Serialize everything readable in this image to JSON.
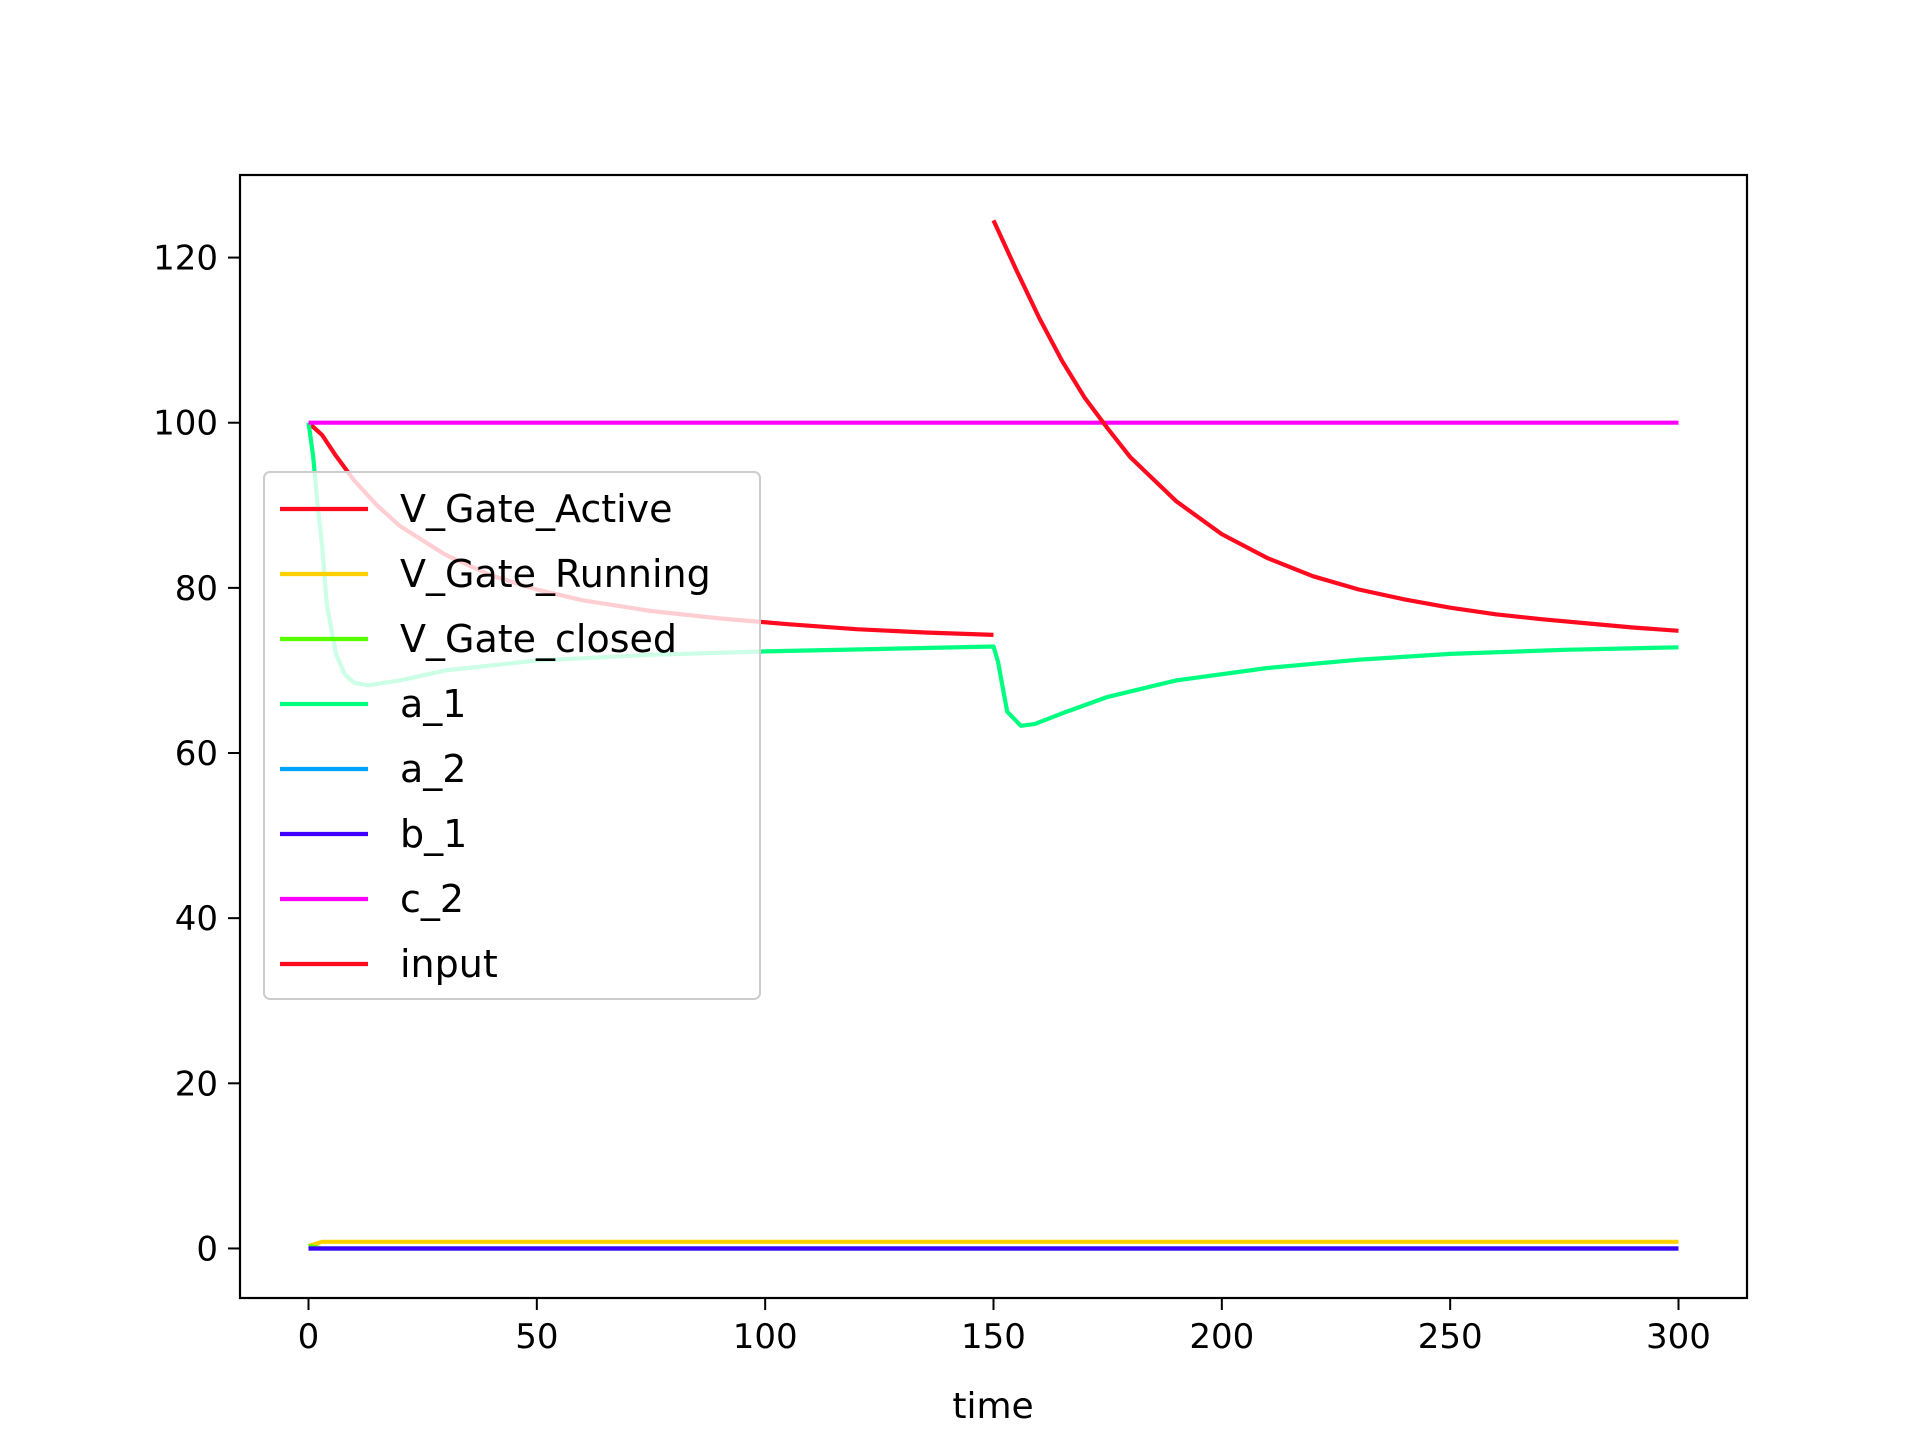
{
  "chart_data": {
    "type": "line",
    "title": "",
    "xlabel": "time",
    "ylabel": "",
    "xlim": [
      -15,
      315
    ],
    "ylim": [
      -6,
      130
    ],
    "xticks": [
      0,
      50,
      100,
      150,
      200,
      250,
      300
    ],
    "yticks": [
      0,
      20,
      40,
      60,
      80,
      100,
      120
    ],
    "grid": false,
    "legend_placement": "center-left",
    "legend": [
      "V_Gate_Active",
      "V_Gate_Running",
      "V_Gate_closed",
      "a_1",
      "a_2",
      "b_1",
      "c_2",
      "input"
    ],
    "series": [
      {
        "name": "V_Gate_Active",
        "color": "#ff0a1e",
        "x": [
          0,
          3,
          6,
          10,
          15,
          20,
          30,
          40,
          50,
          60,
          75,
          90,
          105,
          120,
          135,
          150
        ],
        "y": [
          100,
          98.5,
          96,
          93,
          90,
          87.5,
          84,
          81.5,
          79.8,
          78.5,
          77.2,
          76.3,
          75.6,
          75.0,
          74.6,
          74.3
        ]
      },
      {
        "name": "V_Gate_Running",
        "color": "#ffd000",
        "x": [
          0,
          3,
          150,
          300
        ],
        "y": [
          0.3,
          0.8,
          0.8,
          0.8
        ]
      },
      {
        "name": "V_Gate_closed",
        "color": "#55ff00",
        "x": [
          0,
          3,
          150,
          300
        ],
        "y": [
          0.3,
          0.0,
          0.0,
          0.0
        ]
      },
      {
        "name": "a_1",
        "color": "#00ff80",
        "x": [
          0,
          1,
          2,
          3,
          4,
          6,
          8,
          10,
          13,
          20,
          30,
          50,
          75,
          100,
          125,
          150,
          151,
          153,
          156,
          159,
          165,
          175,
          190,
          210,
          230,
          250,
          275,
          300
        ],
        "y": [
          100,
          96,
          90,
          85,
          78,
          72,
          69.5,
          68.5,
          68.2,
          68.8,
          70,
          71.2,
          71.9,
          72.3,
          72.6,
          72.9,
          71,
          65,
          63.3,
          63.5,
          64.8,
          66.8,
          68.8,
          70.3,
          71.3,
          72.0,
          72.5,
          72.8
        ]
      },
      {
        "name": "a_2",
        "color": "#00a2ff",
        "x": [
          0,
          150,
          300
        ],
        "y": [
          0,
          0,
          0
        ]
      },
      {
        "name": "b_1",
        "color": "#4000ff",
        "x": [
          0,
          150,
          300
        ],
        "y": [
          0,
          0,
          0
        ]
      },
      {
        "name": "c_2",
        "color": "#ff00ff",
        "x": [
          0,
          150,
          300
        ],
        "y": [
          100,
          100,
          100
        ]
      },
      {
        "name": "input",
        "color": "#ff0a1e",
        "x": [
          150,
          155,
          160,
          165,
          170,
          175,
          180,
          190,
          200,
          210,
          220,
          230,
          240,
          250,
          260,
          270,
          280,
          290,
          300
        ],
        "y": [
          124.5,
          118.5,
          112.7,
          107.5,
          103,
          99.3,
          95.8,
          90.5,
          86.5,
          83.6,
          81.4,
          79.8,
          78.6,
          77.6,
          76.8,
          76.2,
          75.7,
          75.2,
          74.8
        ]
      }
    ]
  }
}
